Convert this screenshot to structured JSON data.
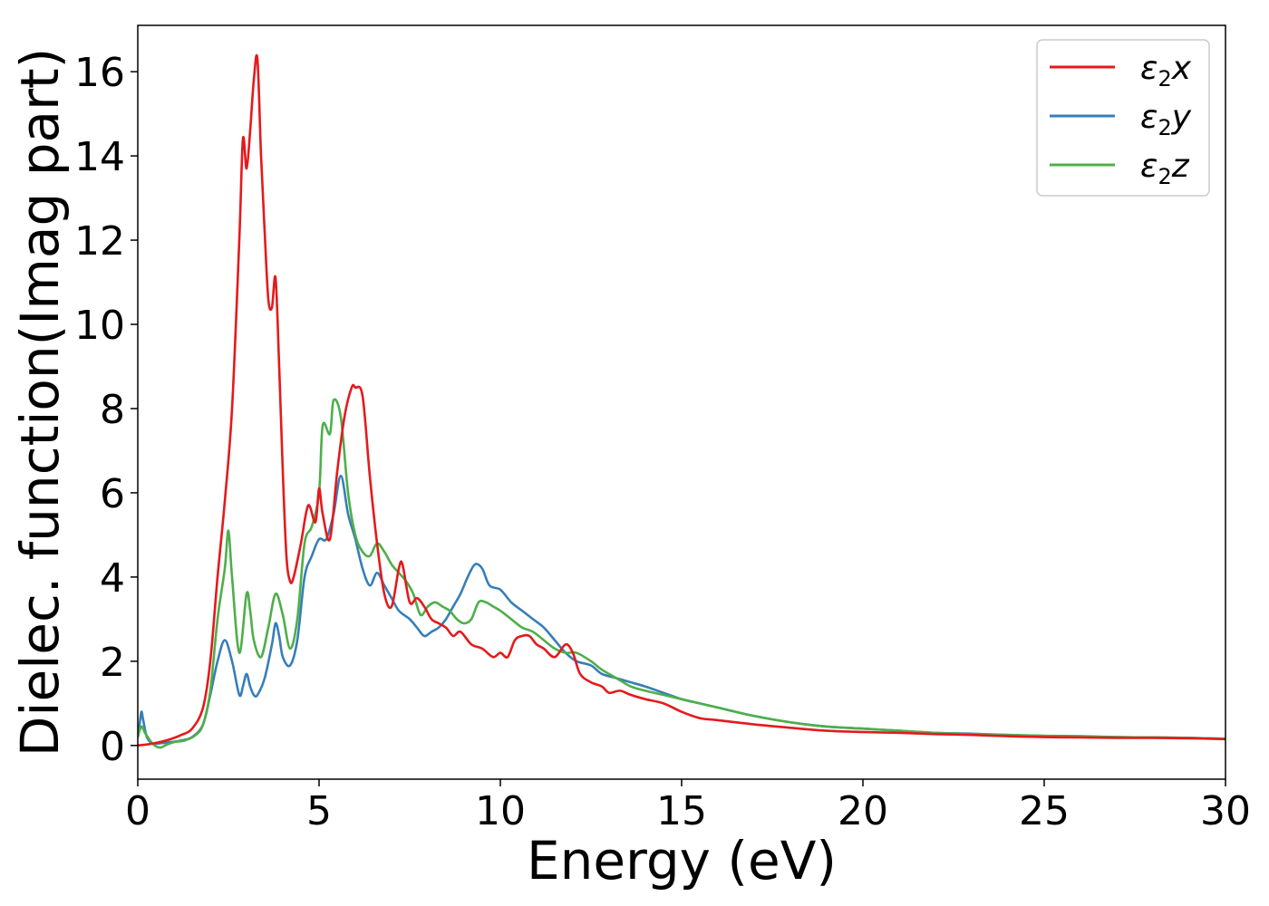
{
  "chart_data": {
    "type": "line",
    "xlabel": "Energy (eV)",
    "ylabel": "Dielec. function(Imag part)",
    "xlim": [
      0,
      30
    ],
    "ylim": [
      -0.8,
      17.1
    ],
    "xticks": [
      0,
      5,
      10,
      15,
      20,
      25,
      30
    ],
    "yticks": [
      0,
      2,
      4,
      6,
      8,
      10,
      12,
      14,
      16
    ],
    "grid": false,
    "legend_position": "top-right",
    "series": [
      {
        "name": "ε2x",
        "legend": {
          "symbol": "ε",
          "sub": "2",
          "var": "x"
        },
        "color": "#e41a1c",
        "x": [
          0,
          0.3,
          0.6,
          0.9,
          1.2,
          1.5,
          1.8,
          2.0,
          2.2,
          2.4,
          2.6,
          2.8,
          2.9,
          3.0,
          3.1,
          3.2,
          3.3,
          3.4,
          3.5,
          3.6,
          3.7,
          3.8,
          3.9,
          4.0,
          4.1,
          4.2,
          4.3,
          4.5,
          4.7,
          4.9,
          5.0,
          5.1,
          5.3,
          5.5,
          5.7,
          5.9,
          6.0,
          6.2,
          6.4,
          6.6,
          6.8,
          7.0,
          7.2,
          7.3,
          7.5,
          7.7,
          7.9,
          8.1,
          8.3,
          8.5,
          8.7,
          8.9,
          9.2,
          9.5,
          9.8,
          10.0,
          10.2,
          10.4,
          10.6,
          10.8,
          11.0,
          11.2,
          11.5,
          11.8,
          12.0,
          12.2,
          12.5,
          12.8,
          13.0,
          13.3,
          13.6,
          14.0,
          14.5,
          15.0,
          15.5,
          16.0,
          17.0,
          18.0,
          19.0,
          20.0,
          21.0,
          22.0,
          23.0,
          24.0,
          25.0,
          26.0,
          27.0,
          28.0,
          29.0,
          30.0
        ],
        "y": [
          0.0,
          0.03,
          0.08,
          0.15,
          0.25,
          0.4,
          0.9,
          2.0,
          4.0,
          5.8,
          8.0,
          12.0,
          14.4,
          13.7,
          14.6,
          15.8,
          16.3,
          14.0,
          12.2,
          10.6,
          10.4,
          11.1,
          9.0,
          6.5,
          4.5,
          3.9,
          4.0,
          4.8,
          5.7,
          5.3,
          6.1,
          5.5,
          4.9,
          6.5,
          7.8,
          8.5,
          8.5,
          8.3,
          6.4,
          4.8,
          3.6,
          3.3,
          4.2,
          4.3,
          3.4,
          3.5,
          3.3,
          3.0,
          2.9,
          2.8,
          2.6,
          2.7,
          2.4,
          2.3,
          2.1,
          2.2,
          2.1,
          2.5,
          2.6,
          2.6,
          2.4,
          2.3,
          2.1,
          2.4,
          2.2,
          1.7,
          1.5,
          1.4,
          1.25,
          1.3,
          1.2,
          1.1,
          1.0,
          0.8,
          0.65,
          0.6,
          0.5,
          0.42,
          0.35,
          0.32,
          0.3,
          0.27,
          0.25,
          0.22,
          0.2,
          0.19,
          0.18,
          0.18,
          0.17,
          0.15
        ]
      },
      {
        "name": "ε2y",
        "legend": {
          "symbol": "ε",
          "sub": "2",
          "var": "y"
        },
        "color": "#377eb8",
        "x": [
          0,
          0.05,
          0.1,
          0.15,
          0.25,
          0.4,
          0.6,
          0.9,
          1.2,
          1.5,
          1.8,
          2.0,
          2.2,
          2.4,
          2.6,
          2.8,
          2.9,
          3.0,
          3.1,
          3.2,
          3.3,
          3.5,
          3.7,
          3.8,
          3.9,
          4.0,
          4.2,
          4.4,
          4.6,
          4.8,
          5.0,
          5.2,
          5.4,
          5.6,
          5.8,
          6.0,
          6.2,
          6.4,
          6.6,
          6.8,
          7.0,
          7.2,
          7.5,
          7.7,
          7.9,
          8.1,
          8.3,
          8.5,
          8.7,
          8.9,
          9.1,
          9.3,
          9.5,
          9.7,
          10.0,
          10.3,
          10.6,
          10.9,
          11.2,
          11.5,
          11.8,
          12.1,
          12.5,
          12.8,
          13.2,
          13.6,
          14.0,
          14.5,
          15.0,
          15.5,
          16.0,
          17.0,
          18.0,
          19.0,
          20.0,
          21.0,
          22.0,
          23.0,
          24.0,
          25.0,
          26.0,
          27.0,
          28.0,
          29.0,
          30.0
        ],
        "y": [
          0.2,
          0.5,
          0.8,
          0.6,
          0.2,
          0.05,
          0.05,
          0.08,
          0.12,
          0.2,
          0.5,
          1.2,
          2.0,
          2.5,
          2.0,
          1.2,
          1.4,
          1.7,
          1.4,
          1.2,
          1.2,
          1.6,
          2.4,
          2.9,
          2.6,
          2.1,
          1.9,
          2.5,
          4.0,
          4.5,
          4.9,
          4.9,
          5.5,
          6.4,
          5.5,
          4.9,
          4.2,
          3.8,
          4.1,
          3.8,
          3.5,
          3.2,
          3.0,
          2.8,
          2.6,
          2.7,
          2.8,
          3.0,
          3.3,
          3.6,
          4.0,
          4.3,
          4.2,
          3.8,
          3.7,
          3.4,
          3.2,
          3.0,
          2.8,
          2.5,
          2.2,
          2.0,
          1.9,
          1.7,
          1.6,
          1.5,
          1.4,
          1.25,
          1.1,
          1.0,
          0.9,
          0.7,
          0.55,
          0.45,
          0.4,
          0.35,
          0.3,
          0.28,
          0.25,
          0.23,
          0.22,
          0.2,
          0.19,
          0.18,
          0.16
        ]
      },
      {
        "name": "ε2z",
        "legend": {
          "symbol": "ε",
          "sub": "2",
          "var": "z"
        },
        "color": "#4daf4a",
        "x": [
          0,
          0.1,
          0.2,
          0.4,
          0.6,
          0.8,
          1.0,
          1.3,
          1.6,
          1.8,
          2.0,
          2.2,
          2.4,
          2.5,
          2.6,
          2.8,
          3.0,
          3.1,
          3.2,
          3.4,
          3.6,
          3.8,
          4.0,
          4.2,
          4.4,
          4.6,
          4.8,
          5.0,
          5.1,
          5.3,
          5.4,
          5.6,
          5.8,
          6.0,
          6.2,
          6.4,
          6.6,
          6.8,
          7.0,
          7.2,
          7.4,
          7.6,
          7.8,
          8.0,
          8.2,
          8.4,
          8.6,
          8.8,
          9.0,
          9.2,
          9.4,
          9.6,
          9.8,
          10.0,
          10.3,
          10.6,
          10.9,
          11.2,
          11.5,
          11.8,
          12.1,
          12.5,
          12.8,
          13.2,
          13.6,
          14.0,
          14.5,
          15.0,
          15.5,
          16.0,
          17.0,
          18.0,
          19.0,
          20.0,
          21.0,
          22.0,
          23.0,
          24.0,
          25.0,
          26.0,
          27.0,
          28.0,
          29.0,
          30.0
        ],
        "y": [
          0.2,
          0.45,
          0.3,
          0.05,
          -0.05,
          0.02,
          0.08,
          0.12,
          0.25,
          0.5,
          1.3,
          3.0,
          4.2,
          5.1,
          4.0,
          2.2,
          3.6,
          3.2,
          2.5,
          2.1,
          2.8,
          3.6,
          3.1,
          2.3,
          3.0,
          4.8,
          5.2,
          6.0,
          7.6,
          7.4,
          8.2,
          7.8,
          6.0,
          5.0,
          4.6,
          4.5,
          4.8,
          4.6,
          4.3,
          4.1,
          3.9,
          3.6,
          3.1,
          3.3,
          3.4,
          3.3,
          3.2,
          3.0,
          2.9,
          3.0,
          3.4,
          3.4,
          3.3,
          3.2,
          3.0,
          2.8,
          2.7,
          2.5,
          2.3,
          2.2,
          2.2,
          2.0,
          1.8,
          1.6,
          1.4,
          1.3,
          1.2,
          1.1,
          1.0,
          0.9,
          0.7,
          0.55,
          0.45,
          0.4,
          0.35,
          0.3,
          0.27,
          0.25,
          0.23,
          0.21,
          0.2,
          0.19,
          0.18,
          0.16
        ]
      }
    ]
  }
}
